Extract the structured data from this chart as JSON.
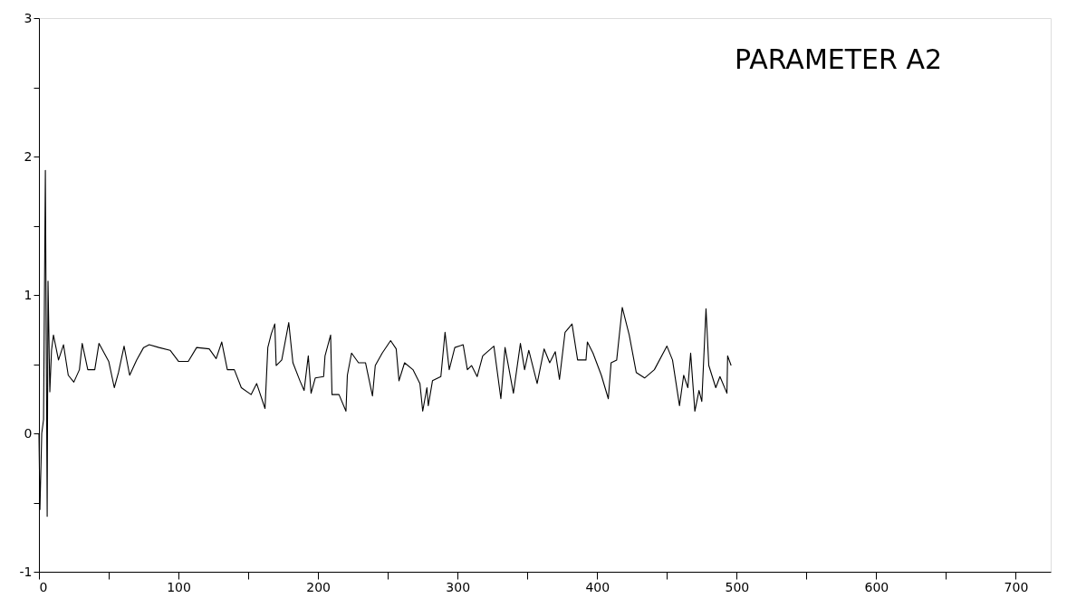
{
  "chart_data": {
    "type": "line",
    "title": "PARAMETER A2",
    "x": [
      0,
      0.7,
      2,
      3.3,
      4.6,
      5.9,
      6.5,
      7.8,
      9,
      10.4,
      14,
      17.6,
      21,
      25,
      29,
      31,
      35,
      40,
      43,
      50,
      54,
      57,
      61,
      65,
      70,
      75,
      79,
      86,
      94,
      100,
      107,
      113,
      122,
      127,
      131,
      135,
      140,
      145,
      152,
      156,
      162,
      164,
      166.5,
      169,
      170,
      174,
      179,
      182,
      187,
      190,
      193,
      195,
      198,
      204,
      205,
      209,
      210,
      215,
      220,
      221,
      224,
      229,
      234,
      239,
      241,
      246,
      252,
      256,
      258,
      262,
      268,
      273,
      275,
      278,
      279,
      282,
      288,
      291,
      294,
      298,
      304,
      307,
      310,
      314,
      318,
      326,
      331,
      334,
      340,
      345,
      348,
      351,
      357,
      362,
      366,
      370,
      373,
      377,
      382,
      386,
      392,
      393,
      397,
      403,
      408,
      410,
      414,
      418,
      423,
      428,
      434,
      441,
      450,
      454,
      459,
      462,
      465,
      467,
      470,
      473,
      475,
      478,
      480,
      485,
      488,
      493,
      493.5,
      496
    ],
    "series": [
      {
        "color": "#000000",
        "values": [
          0,
          -0.55,
          0.0,
          0.1,
          1.9,
          -0.6,
          1.1,
          0.3,
          0.6,
          0.71,
          0.53,
          0.64,
          0.42,
          0.37,
          0.46,
          0.65,
          0.46,
          0.46,
          0.65,
          0.52,
          0.33,
          0.44,
          0.63,
          0.42,
          0.53,
          0.62,
          0.64,
          0.62,
          0.6,
          0.52,
          0.52,
          0.62,
          0.61,
          0.54,
          0.66,
          0.46,
          0.46,
          0.33,
          0.28,
          0.36,
          0.18,
          0.62,
          0.72,
          0.79,
          0.49,
          0.53,
          0.8,
          0.51,
          0.38,
          0.31,
          0.56,
          0.29,
          0.4,
          0.41,
          0.56,
          0.71,
          0.28,
          0.28,
          0.16,
          0.42,
          0.58,
          0.51,
          0.51,
          0.27,
          0.49,
          0.58,
          0.67,
          0.61,
          0.38,
          0.51,
          0.46,
          0.36,
          0.16,
          0.33,
          0.2,
          0.38,
          0.41,
          0.73,
          0.46,
          0.62,
          0.64,
          0.46,
          0.49,
          0.41,
          0.56,
          0.63,
          0.25,
          0.62,
          0.29,
          0.65,
          0.46,
          0.6,
          0.36,
          0.61,
          0.51,
          0.59,
          0.39,
          0.73,
          0.79,
          0.53,
          0.53,
          0.66,
          0.58,
          0.42,
          0.25,
          0.51,
          0.53,
          0.91,
          0.71,
          0.44,
          0.4,
          0.46,
          0.63,
          0.53,
          0.2,
          0.42,
          0.33,
          0.58,
          0.16,
          0.31,
          0.23,
          0.9,
          0.49,
          0.33,
          0.41,
          0.29,
          0.56,
          0.49
        ]
      }
    ],
    "xlim": [
      0,
      725
    ],
    "xticks": [
      0,
      {
        "value": 50,
        "label": null
      },
      100,
      {
        "value": 150,
        "label": null
      },
      200,
      {
        "value": 250,
        "label": null
      },
      300,
      {
        "value": 350,
        "label": null
      },
      400,
      {
        "value": 450,
        "label": null
      },
      500,
      {
        "value": 550,
        "label": null
      },
      600,
      {
        "value": 650,
        "label": null
      },
      700
    ],
    "ylim": [
      -1,
      3
    ],
    "yticks": [
      -1,
      {
        "value": -0.5,
        "label": null
      },
      0,
      {
        "value": 0.5,
        "label": null
      },
      1,
      {
        "value": 1.5,
        "label": null
      },
      2,
      {
        "value": 2.5,
        "label": null
      },
      3
    ],
    "grid": false,
    "legend": false,
    "marker": "none",
    "line_style": "solid"
  }
}
